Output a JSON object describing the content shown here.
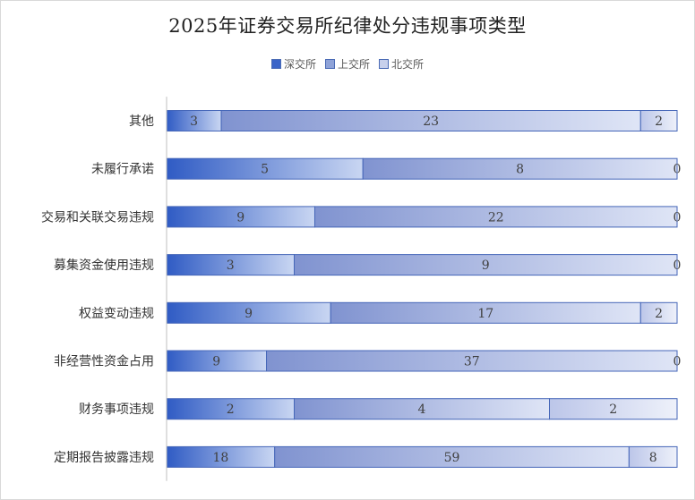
{
  "chart_data": {
    "type": "bar",
    "orientation": "horizontal",
    "stacking": "percent",
    "title": "2025年证券交易所纪律处分违规事项类型",
    "legend_position": "top",
    "categories": [
      "其他",
      "未履行承诺",
      "交易和关联交易违规",
      "募集资金使用违规",
      "权益变动违规",
      "非经营性资金占用",
      "财务事项违规",
      "定期报告披露违规"
    ],
    "series": [
      {
        "name": "深交所",
        "values": [
          3,
          5,
          9,
          3,
          9,
          9,
          2,
          18
        ],
        "color": "#3a64c8"
      },
      {
        "name": "上交所",
        "values": [
          23,
          8,
          22,
          9,
          17,
          37,
          4,
          59
        ],
        "color": "#8fa3d8"
      },
      {
        "name": "北交所",
        "values": [
          2,
          0,
          0,
          0,
          2,
          0,
          2,
          8
        ],
        "color": "#c7d0ec"
      }
    ],
    "grid": false
  }
}
